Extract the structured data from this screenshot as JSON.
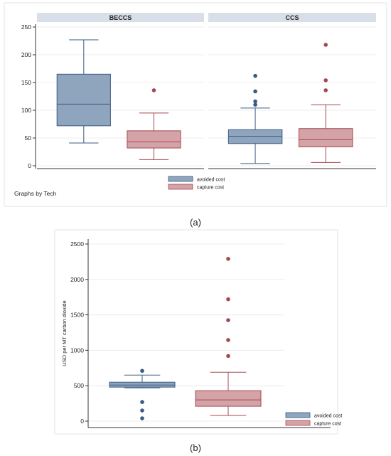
{
  "chart_data": [
    {
      "type": "box",
      "panel_label": "(a)",
      "facet_note": "Graphs by Tech",
      "ylim": [
        0,
        250
      ],
      "yticks": [
        0,
        50,
        100,
        150,
        200,
        250
      ],
      "grid": true,
      "legend": {
        "position": "bottom-center"
      },
      "series": [
        {
          "name": "avoided cost",
          "color": "#8fa4bd",
          "stroke": "#3b5b82"
        },
        {
          "name": "capture cost",
          "color": "#d4a3a8",
          "stroke": "#a4484f"
        }
      ],
      "facets": [
        {
          "title": "BECCS",
          "boxes": [
            {
              "series": "avoided cost",
              "min": 41,
              "q1": 72,
              "median": 111,
              "q3": 165,
              "max": 227,
              "outliers": []
            },
            {
              "series": "capture cost",
              "min": 11,
              "q1": 32,
              "median": 43,
              "q3": 63,
              "max": 95,
              "outliers": [
                136
              ]
            }
          ]
        },
        {
          "title": "CCS",
          "boxes": [
            {
              "series": "avoided cost",
              "min": 4,
              "q1": 40,
              "median": 53,
              "q3": 65,
              "max": 104,
              "outliers": [
                110,
                116,
                134,
                162
              ]
            },
            {
              "series": "capture cost",
              "min": 6,
              "q1": 34,
              "median": 47,
              "q3": 67,
              "max": 110,
              "outliers": [
                136,
                154,
                218
              ]
            }
          ]
        }
      ]
    },
    {
      "type": "box",
      "panel_label": "(b)",
      "ylabel": "USD per MT carbon dioxide",
      "ylim": [
        0,
        2500
      ],
      "yticks": [
        0,
        500,
        1000,
        1500,
        2000,
        2500
      ],
      "grid": true,
      "legend": {
        "position": "bottom-right"
      },
      "series": [
        {
          "name": "avoided cost",
          "color": "#8fa4bd",
          "stroke": "#3b5b82"
        },
        {
          "name": "capture cost",
          "color": "#d4a3a8",
          "stroke": "#a4484f"
        }
      ],
      "boxes": [
        {
          "series": "avoided cost",
          "min": 470,
          "q1": 480,
          "median": 510,
          "q3": 550,
          "max": 650,
          "outliers": [
            710,
            270,
            150,
            40
          ]
        },
        {
          "series": "capture cost",
          "min": 80,
          "q1": 210,
          "median": 300,
          "q3": 430,
          "max": 690,
          "outliers": [
            920,
            1145,
            1425,
            1720,
            2290
          ]
        }
      ]
    }
  ]
}
